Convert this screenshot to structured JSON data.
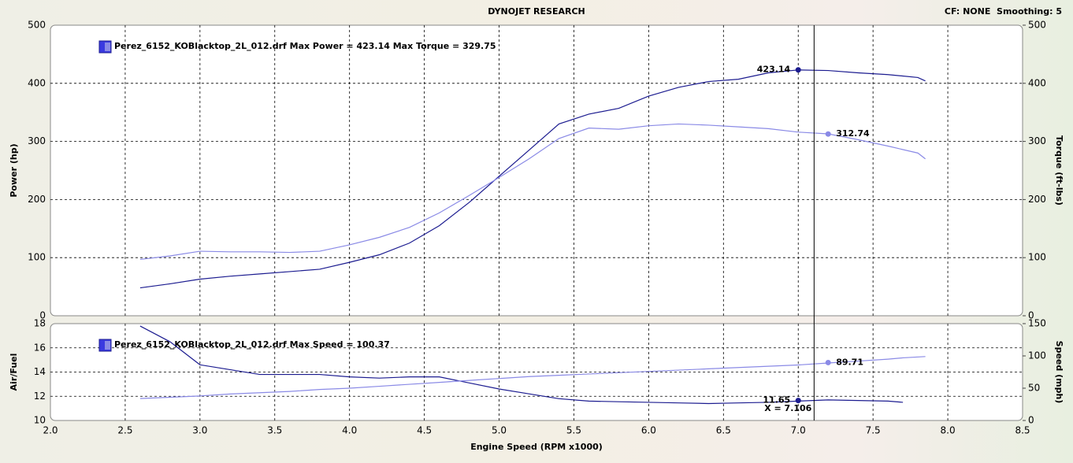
{
  "header": {
    "title": "DYNOJET RESEARCH",
    "settings": "CF: NONE  Smoothing: 5"
  },
  "cursor": {
    "value": 7.106,
    "label": "X = 7.106"
  },
  "chart_data": [
    {
      "type": "line",
      "legend_text": "Perez_6152_KOBlacktop_2L_012.drf Max Power = 423.14 Max Torque = 329.75",
      "ylabel": "Power (hp)",
      "y2label": "Torque (ft-lbs)",
      "grid": true,
      "xlim": [
        2,
        8.5
      ],
      "xticks": [
        2,
        2.5,
        3,
        3.5,
        4,
        4.5,
        5,
        5.5,
        6,
        6.5,
        7,
        7.5,
        8,
        8.5
      ],
      "ylim": [
        0,
        500
      ],
      "yticks": [
        0,
        100,
        200,
        300,
        400,
        500
      ],
      "y2lim": [
        0,
        500
      ],
      "y2ticks": [
        0,
        100,
        200,
        300,
        400,
        500
      ],
      "x": [
        2.6,
        2.8,
        3.0,
        3.2,
        3.4,
        3.6,
        3.8,
        4.0,
        4.2,
        4.4,
        4.6,
        4.8,
        5.0,
        5.2,
        5.4,
        5.6,
        5.8,
        6.0,
        6.2,
        6.4,
        6.6,
        6.8,
        7.0,
        7.2,
        7.4,
        7.6,
        7.8,
        7.85
      ],
      "series": [
        {
          "color": "#1c1c90",
          "values": [
            48,
            55,
            63,
            68,
            72,
            76,
            80,
            92,
            105,
            125,
            155,
            195,
            240,
            285,
            330,
            347,
            357,
            378,
            393,
            403,
            407,
            418,
            423,
            422,
            418,
            415,
            410,
            404
          ],
          "marker": {
            "x": 7.0,
            "value": 423.14
          }
        },
        {
          "color": "#8a8ae6",
          "axis": "y2",
          "values": [
            97,
            103,
            111,
            110,
            110,
            109,
            111,
            122,
            135,
            152,
            177,
            207,
            238,
            270,
            305,
            323,
            321,
            327,
            330,
            328,
            325,
            322,
            316,
            313,
            303,
            292,
            280,
            270
          ],
          "marker": {
            "x": 7.2,
            "value": 312.74
          }
        }
      ]
    },
    {
      "type": "line",
      "legend_text": "Perez_6152_KOBlacktop_2L_012.drf Max Speed = 100.37",
      "xlabel": "Engine Speed (RPM x1000)",
      "ylabel": "Air/Fuel",
      "y2label": "Speed (mph)",
      "grid": true,
      "xlim": [
        2,
        8.5
      ],
      "xticks": [
        {
          "value": 2,
          "label": "2.0"
        },
        {
          "value": 2.5,
          "label": "2.5"
        },
        {
          "value": 3,
          "label": "3.0"
        },
        {
          "value": 3.5,
          "label": "3.5"
        },
        {
          "value": 4,
          "label": "4.0"
        },
        {
          "value": 4.5,
          "label": "4.5"
        },
        {
          "value": 5,
          "label": "5.0"
        },
        {
          "value": 5.5,
          "label": "5.5"
        },
        {
          "value": 6,
          "label": "6.0"
        },
        {
          "value": 6.5,
          "label": "6.5"
        },
        {
          "value": 7,
          "label": "7.0"
        },
        {
          "value": 7.5,
          "label": "7.5"
        },
        {
          "value": 8,
          "label": "8.0"
        },
        {
          "value": 8.5,
          "label": "8.5"
        }
      ],
      "ylim": [
        10,
        18
      ],
      "yticks": [
        10,
        12,
        14,
        16,
        18
      ],
      "y2lim": [
        0,
        150
      ],
      "y2ticks": [
        0,
        50,
        100,
        150
      ],
      "x": [
        2.6,
        2.8,
        3.0,
        3.2,
        3.4,
        3.6,
        3.8,
        4.0,
        4.2,
        4.4,
        4.6,
        4.8,
        5.0,
        5.2,
        5.4,
        5.6,
        5.8,
        6.0,
        6.2,
        6.4,
        6.6,
        6.8,
        7.0,
        7.2,
        7.4,
        7.6,
        7.7,
        7.85
      ],
      "series": [
        {
          "color": "#1c1c90",
          "values": [
            17.8,
            16.5,
            14.6,
            14.2,
            13.8,
            13.8,
            13.8,
            13.6,
            13.5,
            13.6,
            13.6,
            13.1,
            12.6,
            12.2,
            11.8,
            11.6,
            11.55,
            11.5,
            11.45,
            11.4,
            11.45,
            11.5,
            11.6,
            11.7,
            11.65,
            11.6,
            11.5,
            null
          ],
          "marker": {
            "x": 7.0,
            "value": 11.65
          }
        },
        {
          "color": "#8a8ae6",
          "axis": "y2",
          "values": [
            34,
            36,
            38,
            41,
            43,
            45,
            48,
            50,
            53,
            56,
            59,
            62,
            65,
            68,
            70,
            72,
            74,
            76,
            78,
            80,
            82,
            84,
            86,
            89,
            92,
            95,
            97,
            99
          ],
          "marker": {
            "x": 7.2,
            "value": 89.71
          }
        }
      ]
    }
  ]
}
